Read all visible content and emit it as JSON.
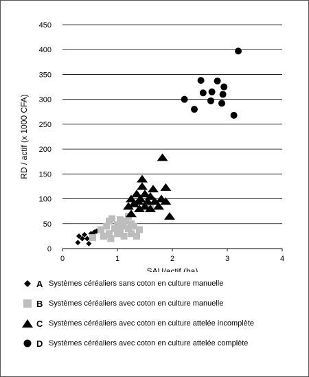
{
  "chart_data": {
    "type": "scatter",
    "title": "",
    "xlabel": "SAU/actif (ha)",
    "ylabel": "RD / actif (x 1000 CFA)",
    "xlim": [
      0,
      4
    ],
    "ylim": [
      0,
      450
    ],
    "x_ticks": [
      "0",
      "1",
      "2",
      "3",
      "4"
    ],
    "y_ticks": [
      "0",
      "50",
      "100",
      "150",
      "200",
      "250",
      "300",
      "350",
      "400",
      "450"
    ],
    "grid": "horizontal",
    "legend_position": "bottom",
    "series": [
      {
        "key": "A",
        "name": "Systèmes céréaliers sans coton en culture manuelle",
        "marker": "diamond",
        "color": "#000000",
        "points": [
          [
            0.28,
            12
          ],
          [
            0.3,
            25
          ],
          [
            0.36,
            20
          ],
          [
            0.4,
            28
          ],
          [
            0.45,
            20
          ],
          [
            0.48,
            10
          ],
          [
            0.52,
            30
          ],
          [
            0.58,
            33
          ],
          [
            0.62,
            35
          ]
        ]
      },
      {
        "key": "B",
        "name": "Systèmes céréaliers avec coton en culture manuelle",
        "marker": "square",
        "color": "#bdbdbd",
        "points": [
          [
            0.55,
            22
          ],
          [
            0.7,
            38
          ],
          [
            0.75,
            25
          ],
          [
            0.8,
            45
          ],
          [
            0.85,
            55
          ],
          [
            0.85,
            30
          ],
          [
            0.88,
            20
          ],
          [
            0.9,
            60
          ],
          [
            0.95,
            40
          ],
          [
            1.0,
            48
          ],
          [
            1.0,
            30
          ],
          [
            1.05,
            35
          ],
          [
            1.05,
            58
          ],
          [
            1.1,
            45
          ],
          [
            1.12,
            25
          ],
          [
            1.15,
            55
          ],
          [
            1.2,
            40
          ],
          [
            1.2,
            65
          ],
          [
            1.25,
            30
          ],
          [
            1.25,
            50
          ],
          [
            1.3,
            45
          ],
          [
            1.35,
            25
          ],
          [
            1.4,
            38
          ],
          [
            1.6,
            85
          ]
        ]
      },
      {
        "key": "C",
        "name": "Systèmes céréaliers avec coton en culture attelée incomplète",
        "marker": "triangle",
        "color": "#000000",
        "points": [
          [
            1.2,
            85
          ],
          [
            1.25,
            100
          ],
          [
            1.25,
            70
          ],
          [
            1.3,
            90
          ],
          [
            1.35,
            110
          ],
          [
            1.38,
            95
          ],
          [
            1.4,
            80
          ],
          [
            1.42,
            100
          ],
          [
            1.45,
            140
          ],
          [
            1.45,
            125
          ],
          [
            1.5,
            85
          ],
          [
            1.5,
            110
          ],
          [
            1.55,
            95
          ],
          [
            1.6,
            80
          ],
          [
            1.6,
            105
          ],
          [
            1.65,
            120
          ],
          [
            1.68,
            95
          ],
          [
            1.75,
            85
          ],
          [
            1.8,
            100
          ],
          [
            1.82,
            183
          ],
          [
            1.88,
            123
          ],
          [
            1.88,
            95
          ],
          [
            1.95,
            65
          ]
        ]
      },
      {
        "key": "D",
        "name": "Systèmes céréaliers avec coton en culture attelée complète",
        "marker": "circle",
        "color": "#000000",
        "points": [
          [
            2.22,
            300
          ],
          [
            2.4,
            280
          ],
          [
            2.52,
            338
          ],
          [
            2.56,
            313
          ],
          [
            2.7,
            297
          ],
          [
            2.72,
            315
          ],
          [
            2.82,
            337
          ],
          [
            2.9,
            292
          ],
          [
            2.92,
            310
          ],
          [
            2.94,
            325
          ],
          [
            3.12,
            268
          ],
          [
            3.2,
            397
          ]
        ]
      }
    ]
  }
}
